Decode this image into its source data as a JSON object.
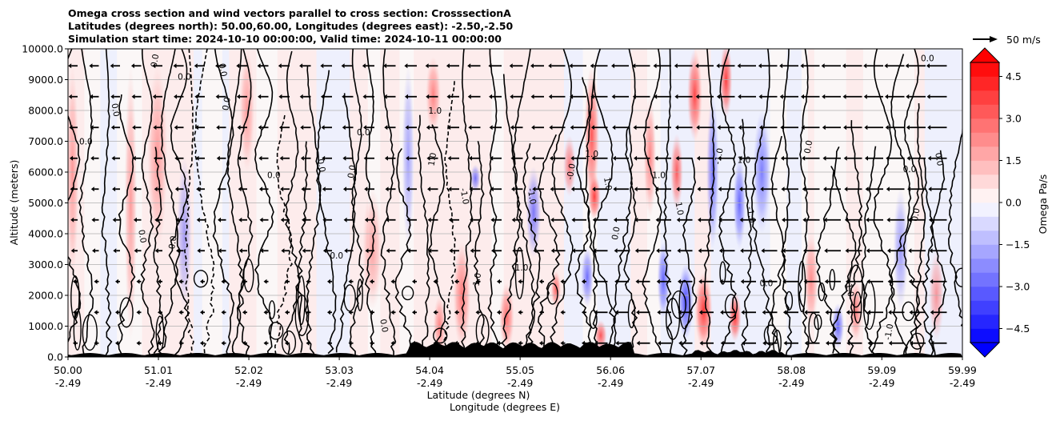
{
  "chart_data": {
    "type": "heatmap",
    "title_lines": [
      "Omega cross section and wind vectors parallel to cross section: CrosssectionA",
      "Latitudes (degrees north): 50.00,60.00, Longitudes (degrees east): -2.50,-2.50",
      "Simulation start time: 2024-10-10 00:00:00, Valid time: 2024-10-11 00:00:00"
    ],
    "xlabel_lat": "Latitude (degrees N)",
    "xlabel_lon": "Longitude (degrees E)",
    "ylabel": "Altitude (meters)",
    "xlim": [
      50.0,
      59.99
    ],
    "ylim": [
      0,
      10000
    ],
    "x_ticks": [
      {
        "value": 50.0,
        "lat": "50.00",
        "lon": "-2.49"
      },
      {
        "value": 51.01,
        "lat": "51.01",
        "lon": "-2.49"
      },
      {
        "value": 52.02,
        "lat": "52.02",
        "lon": "-2.49"
      },
      {
        "value": 53.03,
        "lat": "53.03",
        "lon": "-2.49"
      },
      {
        "value": 54.04,
        "lat": "54.04",
        "lon": "-2.49"
      },
      {
        "value": 55.05,
        "lat": "55.05",
        "lon": "-2.49"
      },
      {
        "value": 56.06,
        "lat": "56.06",
        "lon": "-2.49"
      },
      {
        "value": 57.07,
        "lat": "57.07",
        "lon": "-2.49"
      },
      {
        "value": 58.08,
        "lat": "58.08",
        "lon": "-2.49"
      },
      {
        "value": 59.09,
        "lat": "59.09",
        "lon": "-2.49"
      },
      {
        "value": 59.99,
        "lat": "59.99",
        "lon": "-2.49"
      }
    ],
    "y_ticks": [
      {
        "value": 0,
        "label": "0.0"
      },
      {
        "value": 1000,
        "label": "1000.0"
      },
      {
        "value": 2000,
        "label": "2000.0"
      },
      {
        "value": 3000,
        "label": "3000.0"
      },
      {
        "value": 4000,
        "label": "4000.0"
      },
      {
        "value": 5000,
        "label": "5000.0"
      },
      {
        "value": 6000,
        "label": "6000.0"
      },
      {
        "value": 7000,
        "label": "7000.0"
      },
      {
        "value": 8000,
        "label": "8000.0"
      },
      {
        "value": 9000,
        "label": "9000.0"
      },
      {
        "value": 10000,
        "label": "10000.0"
      }
    ],
    "colorbar": {
      "label": "Omega Pa/s",
      "vmin": -5.0,
      "vmax": 5.0,
      "extend": "both",
      "ticks": [
        {
          "value": 4.5,
          "label": "4.5"
        },
        {
          "value": 3.0,
          "label": "3.0"
        },
        {
          "value": 1.5,
          "label": "1.5"
        },
        {
          "value": 0.0,
          "label": "0.0"
        },
        {
          "value": -1.5,
          "label": "−1.5"
        },
        {
          "value": -3.0,
          "label": "−3.0"
        },
        {
          "value": -4.5,
          "label": "−4.5"
        }
      ]
    },
    "quiver_key": {
      "label": "50 m/s"
    },
    "omega_features": [
      {
        "lat": 50.05,
        "alt": 6000,
        "width": 0.05,
        "height": 7000,
        "value": 0.6
      },
      {
        "lat": 50.7,
        "alt": 5000,
        "width": 0.05,
        "height": 9000,
        "value": 0.7
      },
      {
        "lat": 51.0,
        "alt": 6500,
        "width": 0.08,
        "height": 6000,
        "value": 0.6
      },
      {
        "lat": 51.3,
        "alt": 4000,
        "width": 0.06,
        "height": 5000,
        "value": -0.5
      },
      {
        "lat": 52.0,
        "alt": 8000,
        "width": 0.06,
        "height": 4000,
        "value": 0.5
      },
      {
        "lat": 53.4,
        "alt": 3500,
        "width": 0.08,
        "height": 4000,
        "value": 0.5
      },
      {
        "lat": 53.8,
        "alt": 6500,
        "width": 0.05,
        "height": 6000,
        "value": -0.5
      },
      {
        "lat": 54.08,
        "alt": 8500,
        "width": 0.06,
        "height": 2500,
        "value": 1.4
      },
      {
        "lat": 54.15,
        "alt": 1000,
        "width": 0.05,
        "height": 2000,
        "value": 1.4
      },
      {
        "lat": 54.4,
        "alt": 2000,
        "width": 0.07,
        "height": 3500,
        "value": 1.8
      },
      {
        "lat": 54.55,
        "alt": 5800,
        "width": 0.04,
        "height": 900,
        "value": -2.0
      },
      {
        "lat": 54.9,
        "alt": 1300,
        "width": 0.06,
        "height": 2200,
        "value": 2.2
      },
      {
        "lat": 55.2,
        "alt": 4700,
        "width": 0.06,
        "height": 3000,
        "value": -1.8
      },
      {
        "lat": 55.45,
        "alt": 2200,
        "width": 0.04,
        "height": 1200,
        "value": 2.5
      },
      {
        "lat": 55.6,
        "alt": 6200,
        "width": 0.05,
        "height": 2000,
        "value": 1.8
      },
      {
        "lat": 55.85,
        "alt": 7200,
        "width": 0.06,
        "height": 4500,
        "value": 3.0
      },
      {
        "lat": 55.88,
        "alt": 5200,
        "width": 0.05,
        "height": 1500,
        "value": 3.8
      },
      {
        "lat": 55.8,
        "alt": 2600,
        "width": 0.05,
        "height": 2000,
        "value": -2.2
      },
      {
        "lat": 55.95,
        "alt": 700,
        "width": 0.05,
        "height": 1000,
        "value": 3.0
      },
      {
        "lat": 56.5,
        "alt": 6500,
        "width": 0.05,
        "height": 4000,
        "value": 1.5
      },
      {
        "lat": 56.65,
        "alt": 2500,
        "width": 0.05,
        "height": 2500,
        "value": -2.5
      },
      {
        "lat": 56.9,
        "alt": 1800,
        "width": 0.06,
        "height": 2500,
        "value": -3.5
      },
      {
        "lat": 56.8,
        "alt": 6000,
        "width": 0.05,
        "height": 2500,
        "value": 2.8
      },
      {
        "lat": 57.0,
        "alt": 8500,
        "width": 0.06,
        "height": 3000,
        "value": 3.5
      },
      {
        "lat": 57.1,
        "alt": 1500,
        "width": 0.07,
        "height": 2500,
        "value": 4.0
      },
      {
        "lat": 57.2,
        "alt": 6000,
        "width": 0.05,
        "height": 5000,
        "value": -2.0
      },
      {
        "lat": 57.35,
        "alt": 9000,
        "width": 0.05,
        "height": 2500,
        "value": 3.8
      },
      {
        "lat": 57.45,
        "alt": 1300,
        "width": 0.05,
        "height": 1600,
        "value": 4.2
      },
      {
        "lat": 57.5,
        "alt": 5000,
        "width": 0.05,
        "height": 3000,
        "value": -2.4
      },
      {
        "lat": 57.75,
        "alt": 6000,
        "width": 0.07,
        "height": 4000,
        "value": -1.6
      },
      {
        "lat": 58.3,
        "alt": 2500,
        "width": 0.06,
        "height": 3000,
        "value": 1.0
      },
      {
        "lat": 58.6,
        "alt": 1000,
        "width": 0.05,
        "height": 1500,
        "value": -2.6
      },
      {
        "lat": 58.8,
        "alt": 1500,
        "width": 0.05,
        "height": 2000,
        "value": 1.6
      },
      {
        "lat": 59.3,
        "alt": 3500,
        "width": 0.06,
        "height": 4000,
        "value": -0.8
      },
      {
        "lat": 59.7,
        "alt": 2000,
        "width": 0.06,
        "height": 3000,
        "value": 0.8
      }
    ],
    "contour_labels": [
      {
        "lat": 50.2,
        "alt": 6900,
        "label": "0.0"
      },
      {
        "lat": 50.5,
        "alt": 8000,
        "label": "0.0"
      },
      {
        "lat": 51.0,
        "alt": 9600,
        "label": "0.0"
      },
      {
        "lat": 51.3,
        "alt": 9000,
        "label": "0.0"
      },
      {
        "lat": 51.7,
        "alt": 9300,
        "label": "0.0"
      },
      {
        "lat": 51.8,
        "alt": 8200,
        "label": "0.0"
      },
      {
        "lat": 52.3,
        "alt": 5800,
        "label": "0.0"
      },
      {
        "lat": 52.8,
        "alt": 6200,
        "label": "0.0"
      },
      {
        "lat": 53.2,
        "alt": 6000,
        "label": "0.0"
      },
      {
        "lat": 53.3,
        "alt": 7200,
        "label": "0.0"
      },
      {
        "lat": 50.8,
        "alt": 3900,
        "label": "0.0"
      },
      {
        "lat": 51.2,
        "alt": 3700,
        "label": "0.0"
      },
      {
        "lat": 53.0,
        "alt": 3200,
        "label": "0.0"
      },
      {
        "lat": 53.5,
        "alt": 1000,
        "label": "0.0"
      },
      {
        "lat": 54.1,
        "alt": 6400,
        "label": "1.0"
      },
      {
        "lat": 54.1,
        "alt": 7900,
        "label": "1.0"
      },
      {
        "lat": 54.4,
        "alt": 5200,
        "label": "-1.0"
      },
      {
        "lat": 54.6,
        "alt": 2500,
        "label": "1.0"
      },
      {
        "lat": 55.05,
        "alt": 2800,
        "label": "-1.0"
      },
      {
        "lat": 55.15,
        "alt": 5200,
        "label": "-1.0"
      },
      {
        "lat": 55.65,
        "alt": 6000,
        "label": "-0.0"
      },
      {
        "lat": 55.85,
        "alt": 6500,
        "label": "1.0"
      },
      {
        "lat": 56.0,
        "alt": 5600,
        "label": "1.0"
      },
      {
        "lat": 56.15,
        "alt": 4000,
        "label": "0.0"
      },
      {
        "lat": 56.6,
        "alt": 5800,
        "label": "1.0"
      },
      {
        "lat": 56.8,
        "alt": 4800,
        "label": "1.0"
      },
      {
        "lat": 57.3,
        "alt": 6500,
        "label": "-1.0"
      },
      {
        "lat": 57.55,
        "alt": 6300,
        "label": "1.0"
      },
      {
        "lat": 57.6,
        "alt": 4600,
        "label": "-1.0"
      },
      {
        "lat": 58.3,
        "alt": 6800,
        "label": "0.0"
      },
      {
        "lat": 57.8,
        "alt": 2300,
        "label": "0.0"
      },
      {
        "lat": 58.7,
        "alt": 2200,
        "label": "-1.0"
      },
      {
        "lat": 59.2,
        "alt": 800,
        "label": "-1.0"
      },
      {
        "lat": 59.4,
        "alt": 6000,
        "label": "0.0"
      },
      {
        "lat": 59.7,
        "alt": 6400,
        "label": "0.0"
      },
      {
        "lat": 59.5,
        "alt": 4600,
        "label": "0.0"
      },
      {
        "lat": 59.6,
        "alt": 9600,
        "label": "0.0"
      }
    ]
  }
}
